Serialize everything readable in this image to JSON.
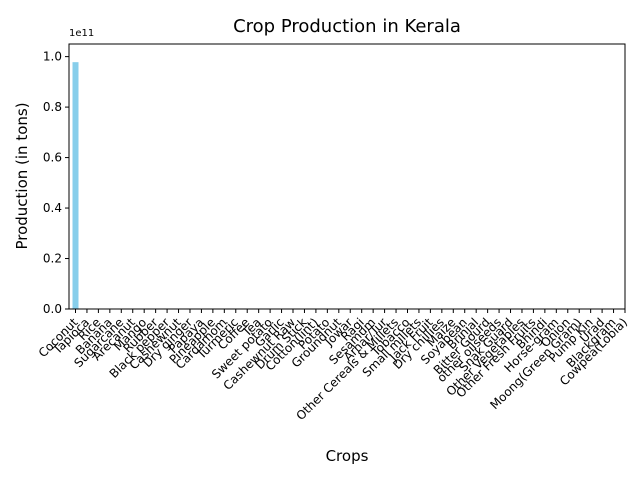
{
  "chart_data": {
    "type": "bar",
    "title": "Crop Production in Kerala",
    "xlabel": "Crops",
    "ylabel": "Production (in tons)",
    "offset_label": "1e11",
    "ylim": [
      0,
      1.05
    ],
    "yticks": [
      "0.0",
      "0.2",
      "0.4",
      "0.6",
      "0.8",
      "1.0"
    ],
    "bar_color": "#87ceeb",
    "categories": [
      "Coconut",
      "Tapioca",
      "Rice",
      "Banana",
      "Sugarcane",
      "Arecanut",
      "Mango",
      "Rubber",
      "Black pepper",
      "Cashewnut",
      "Dry ginger",
      "Papaya",
      "Pineapple",
      "Cardamom",
      "Turmeric",
      "Coffee",
      "Tea",
      "Sweet potato",
      "Garlic",
      "Cashewnut Raw",
      "Drum Stick",
      "Cotton(lint)",
      "Potato",
      "Groundnut",
      "Jowar",
      "Ragi",
      "Sesamum",
      "Arhar/Tur",
      "Other Cereals & Millets",
      "Tobacco",
      "Small millets",
      "Jack Fruit",
      "Dry chillies",
      "Maize",
      "Soyabean",
      "Brinjal",
      "Bitter Gourd",
      "other oilseeds",
      "Snak Guard",
      "Other Vegetables",
      "Other Fresh Fruits",
      "Bhindi",
      "Horse-gram",
      "Onion",
      "Moong(Green Gram)",
      "Pump Kin",
      "Urad",
      "Blackgram",
      "Cowpea(Lobia)"
    ],
    "values": [
      0.978,
      0.0005,
      0.0003,
      0.0002,
      0.0001,
      0.0001,
      0.0001,
      0.0001,
      0.0001,
      0.0001,
      0,
      0,
      0,
      0,
      0,
      0,
      0,
      0,
      0,
      0,
      0,
      0,
      0,
      0,
      0,
      0,
      0,
      0,
      0,
      0,
      0,
      0,
      0,
      0,
      0,
      0,
      0,
      0,
      0,
      0,
      0,
      0,
      0,
      0,
      0,
      0,
      0,
      0,
      0
    ],
    "grid": false,
    "legend": false
  }
}
